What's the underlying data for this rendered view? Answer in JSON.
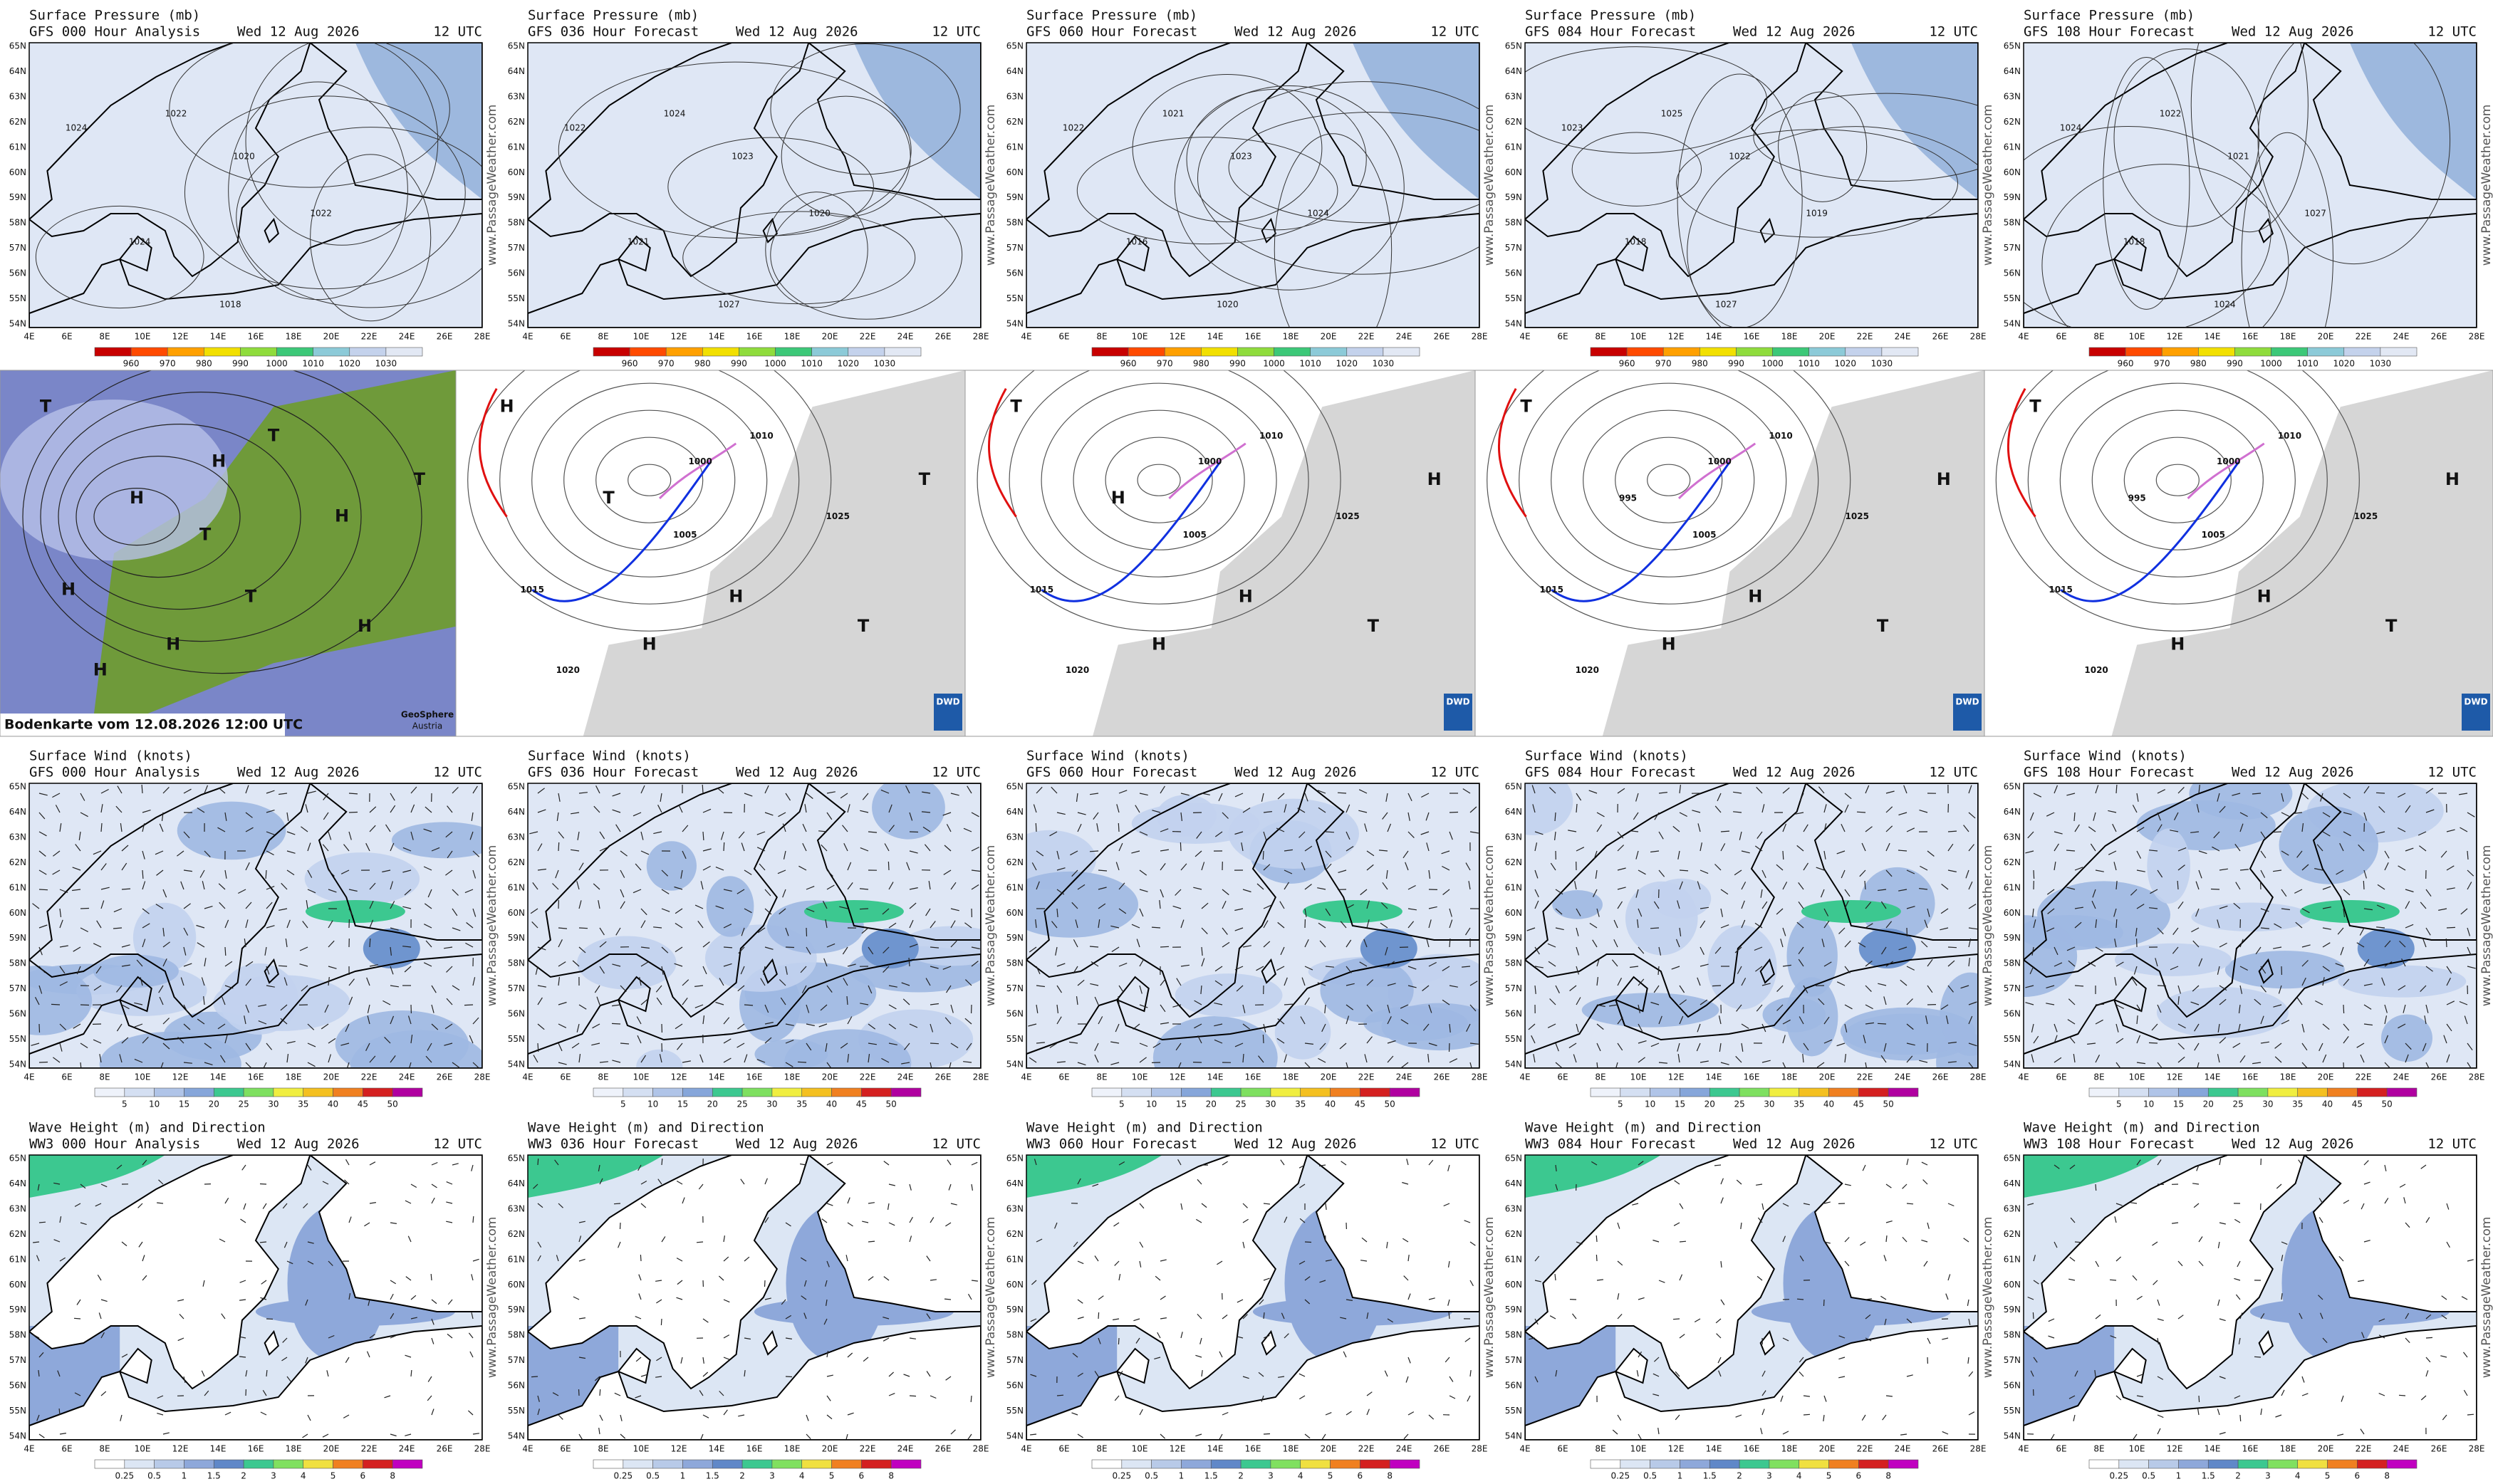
{
  "watermark": "www.PassageWeather.com",
  "lat_labels": [
    "54N",
    "55N",
    "56N",
    "57N",
    "58N",
    "59N",
    "60N",
    "61N",
    "62N",
    "63N",
    "64N",
    "65N"
  ],
  "lon_labels": [
    "4E",
    "6E",
    "8E",
    "10E",
    "12E",
    "14E",
    "16E",
    "18E",
    "20E",
    "22E",
    "24E",
    "26E",
    "28E"
  ],
  "forecast_rows": [
    {
      "kind": "pressure",
      "title": "Surface Pressure (mb)",
      "panels": [
        {
          "subtitle": "GFS 000 Hour Analysis",
          "date": "Wed 12 Aug 2026",
          "time": "12 UTC",
          "isobar_labels": [
            "1024",
            "1022",
            "1020",
            "1024",
            "1022",
            "1018"
          ]
        },
        {
          "subtitle": "GFS 036 Hour Forecast",
          "date": "Wed 12 Aug 2026",
          "time": "12 UTC",
          "isobar_labels": [
            "1022",
            "1024",
            "1023",
            "1021",
            "1020",
            "1027"
          ]
        },
        {
          "subtitle": "GFS 060 Hour Forecast",
          "date": "Wed 12 Aug 2026",
          "time": "12 UTC",
          "isobar_labels": [
            "1022",
            "1021",
            "1023",
            "1016",
            "1024",
            "1020"
          ]
        },
        {
          "subtitle": "GFS 084 Hour Forecast",
          "date": "Wed 12 Aug 2026",
          "time": "12 UTC",
          "isobar_labels": [
            "1023",
            "1025",
            "1022",
            "1018",
            "1019",
            "1027"
          ]
        },
        {
          "subtitle": "GFS 108 Hour Forecast",
          "date": "Wed 12 Aug 2026",
          "time": "12 UTC",
          "isobar_labels": [
            "1024",
            "1022",
            "1021",
            "1018",
            "1027",
            "1024"
          ]
        }
      ],
      "colorbar": {
        "labels": [
          960,
          970,
          980,
          990,
          1000,
          1010,
          1020,
          1030
        ],
        "colors": [
          "#c80000",
          "#ff4a00",
          "#ffa000",
          "#f2e000",
          "#8fdc3c",
          "#3cc878",
          "#8ccad8",
          "#c4d2ec",
          "#e2e8f4"
        ]
      }
    },
    {
      "kind": "wind",
      "title": "Surface Wind (knots)",
      "panels": [
        {
          "subtitle": "GFS 000 Hour Analysis",
          "date": "Wed 12 Aug 2026",
          "time": "12 UTC"
        },
        {
          "subtitle": "GFS 036 Hour Forecast",
          "date": "Wed 12 Aug 2026",
          "time": "12 UTC"
        },
        {
          "subtitle": "GFS 060 Hour Forecast",
          "date": "Wed 12 Aug 2026",
          "time": "12 UTC"
        },
        {
          "subtitle": "GFS 084 Hour Forecast",
          "date": "Wed 12 Aug 2026",
          "time": "12 UTC"
        },
        {
          "subtitle": "GFS 108 Hour Forecast",
          "date": "Wed 12 Aug 2026",
          "time": "12 UTC"
        }
      ],
      "colorbar": {
        "labels": [
          5,
          10,
          15,
          20,
          25,
          30,
          35,
          40,
          45,
          50
        ],
        "colors": [
          "#eef2fa",
          "#d4dff2",
          "#b0c4e8",
          "#86a6da",
          "#3cc890",
          "#7ee060",
          "#f0ee40",
          "#f4c020",
          "#f08020",
          "#d42020",
          "#b000a0"
        ]
      }
    },
    {
      "kind": "wave",
      "title": "Wave Height (m) and Direction",
      "panels": [
        {
          "subtitle": "WW3 000 Hour Analysis",
          "date": "Wed 12 Aug 2026",
          "time": "12 UTC"
        },
        {
          "subtitle": "WW3 036 Hour Forecast",
          "date": "Wed 12 Aug 2026",
          "time": "12 UTC"
        },
        {
          "subtitle": "WW3 060 Hour Forecast",
          "date": "Wed 12 Aug 2026",
          "time": "12 UTC"
        },
        {
          "subtitle": "WW3 084 Hour Forecast",
          "date": "Wed 12 Aug 2026",
          "time": "12 UTC"
        },
        {
          "subtitle": "WW3 108 Hour Forecast",
          "date": "Wed 12 Aug 2026",
          "time": "12 UTC"
        }
      ],
      "colorbar": {
        "labels": [
          0.25,
          0.5,
          1,
          1.5,
          2,
          3,
          4,
          5,
          6,
          8
        ],
        "colors": [
          "#ffffff",
          "#dce6f4",
          "#b8cae8",
          "#8ea8da",
          "#6088c8",
          "#3cc890",
          "#80e060",
          "#f0e040",
          "#f08020",
          "#d42020",
          "#c000c0"
        ]
      }
    }
  ],
  "analysis": [
    {
      "style": "satellite",
      "caption": "Bodenkarte vom 12.08.2026 12:00 UTC",
      "logo": "GeoSphere",
      "logo_sub": "Austria",
      "labels": [
        "T",
        "H",
        "H",
        "T",
        "T",
        "H",
        "H",
        "H",
        "T",
        "H",
        "H",
        "T"
      ]
    },
    {
      "style": "dwd",
      "logo": "DWD",
      "labels": [
        "H",
        "T",
        "1000",
        "1005",
        "1010",
        "1015",
        "1020",
        "1025",
        "H",
        "T",
        "H",
        "T"
      ]
    },
    {
      "style": "dwd",
      "logo": "DWD",
      "labels": [
        "T",
        "H",
        "1000",
        "1005",
        "1010",
        "1015",
        "1020",
        "1025",
        "H",
        "T",
        "H",
        "H"
      ]
    },
    {
      "style": "dwd",
      "logo": "DWD",
      "labels": [
        "T",
        "995",
        "1000",
        "1005",
        "1010",
        "1015",
        "1020",
        "1025",
        "H",
        "T",
        "H",
        "H"
      ]
    },
    {
      "style": "dwd",
      "logo": "DWD",
      "labels": [
        "T",
        "995",
        "1000",
        "1005",
        "1010",
        "1015",
        "1020",
        "1025",
        "H",
        "T",
        "H",
        "H"
      ]
    }
  ]
}
